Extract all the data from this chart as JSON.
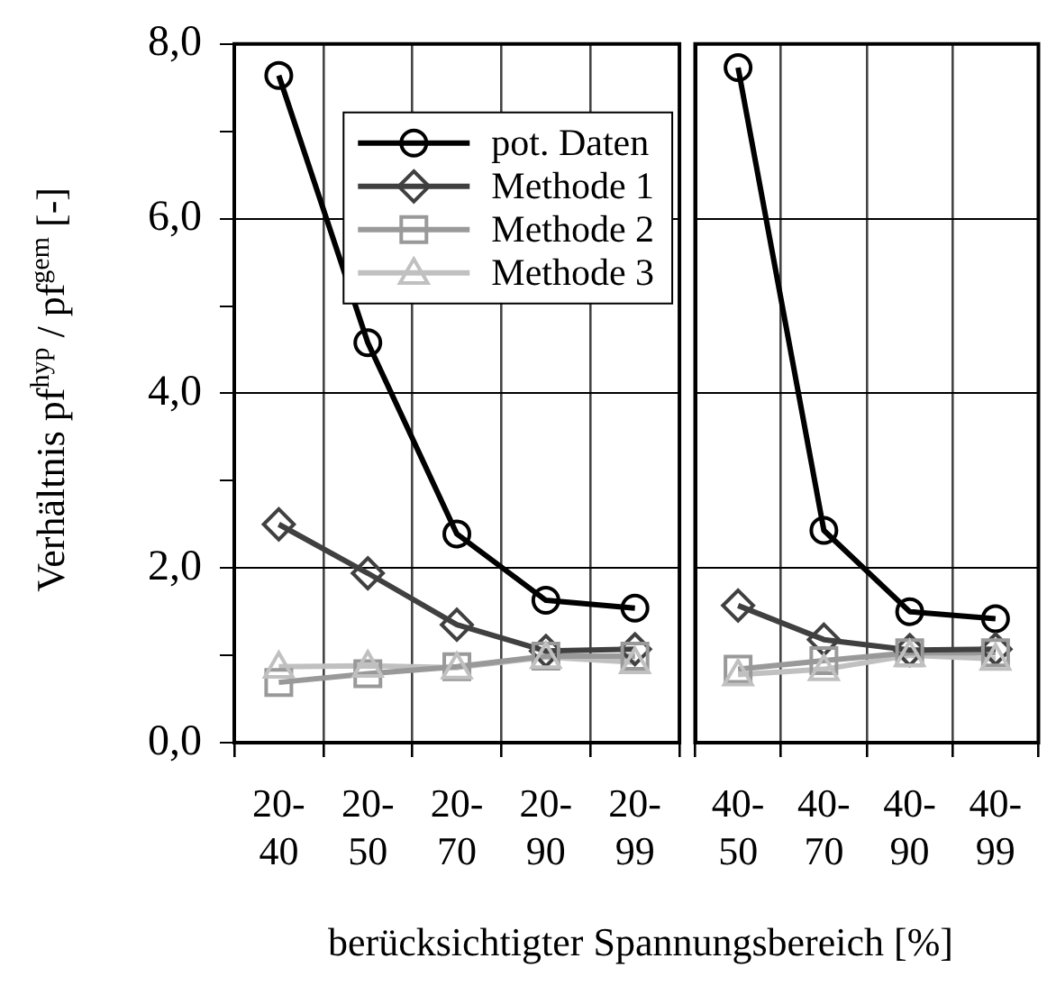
{
  "chart_data": [
    {
      "type": "line",
      "ylabel": "Verhältnis  pf$^{hyp}$ / pf$^{gem}$   [-]",
      "xlabel": "berücksichtigter Spannungsbereich   [%]",
      "categories": [
        "20-40",
        "20-50",
        "20-70",
        "20-90",
        "20-99"
      ],
      "series": [
        {
          "name": "pot. Daten",
          "color": "#000000",
          "marker": "circle",
          "values": [
            7.64,
            4.58,
            2.39,
            1.63,
            1.54
          ]
        },
        {
          "name": "Methode 1",
          "color": "#404040",
          "marker": "diamond",
          "values": [
            2.5,
            1.94,
            1.35,
            1.05,
            1.07
          ]
        },
        {
          "name": "Methode 2",
          "color": "#999999",
          "marker": "square",
          "values": [
            0.69,
            0.79,
            0.87,
            0.99,
            0.99
          ]
        },
        {
          "name": "Methode 3",
          "color": "#c0c0c0",
          "marker": "triangle",
          "values": [
            0.87,
            0.88,
            0.86,
            0.98,
            0.92
          ]
        }
      ],
      "ylim": [
        0,
        8
      ],
      "yticks": [
        {
          "value": 0,
          "label": "0,0"
        },
        {
          "value": 1,
          "label": null
        },
        {
          "value": 2,
          "label": "2,0"
        },
        {
          "value": 3,
          "label": null
        },
        {
          "value": 4,
          "label": "4,0"
        },
        {
          "value": 5,
          "label": null
        },
        {
          "value": 6,
          "label": "6,0"
        },
        {
          "value": 7,
          "label": null
        },
        {
          "value": 8,
          "label": "8,0"
        }
      ],
      "grid": true,
      "legend": "top right"
    },
    {
      "type": "line",
      "categories": [
        "40-50",
        "40-70",
        "40-90",
        "40-99"
      ],
      "series": [
        {
          "color": "#000000",
          "marker": "circle",
          "values": [
            7.73,
            2.43,
            1.5,
            1.42
          ]
        },
        {
          "color": "#404040",
          "marker": "diamond",
          "values": [
            1.57,
            1.18,
            1.06,
            1.07
          ]
        },
        {
          "color": "#999999",
          "marker": "square",
          "values": [
            0.84,
            0.94,
            1.03,
            1.03
          ]
        },
        {
          "color": "#c0c0c0",
          "marker": "triangle",
          "values": [
            0.78,
            0.84,
            1.0,
            0.96
          ]
        }
      ],
      "ylim": [
        0,
        8
      ],
      "yticks": [
        {
          "value": 0,
          "label": null
        },
        {
          "value": 2,
          "label": null
        },
        {
          "value": 4,
          "label": null
        },
        {
          "value": 6,
          "label": null
        },
        {
          "value": 8,
          "label": null
        }
      ],
      "grid": true,
      "tick_labels": "x",
      "legend": false
    }
  ]
}
